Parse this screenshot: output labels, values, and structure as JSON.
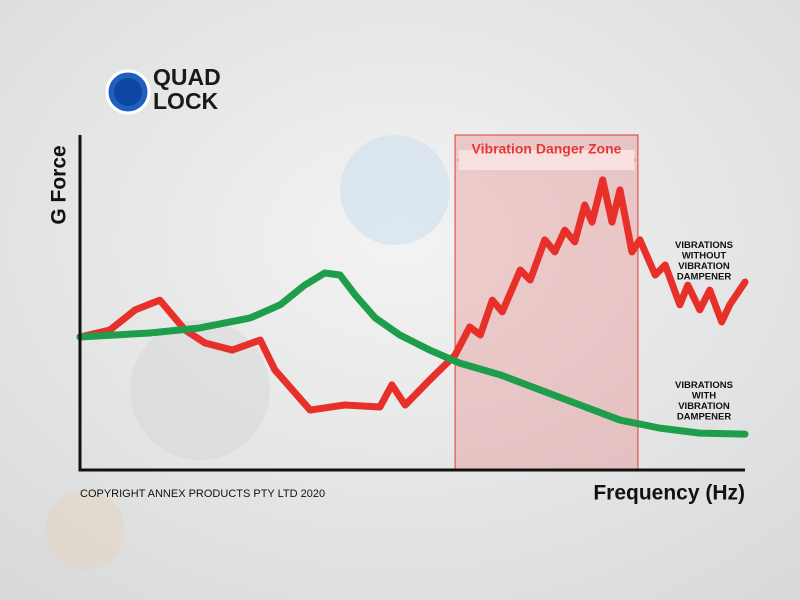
{
  "logo": {
    "lines": [
      "QUAD",
      "LOCK"
    ]
  },
  "copyright": "COPYRIGHT ANNEX PRODUCTS PTY LTD 2020",
  "chart_data": {
    "type": "line",
    "x_label": "Frequency (Hz)",
    "y_label": "G Force",
    "xlim": [
      0,
      100
    ],
    "ylim": [
      0,
      100
    ],
    "zone": {
      "label": "Vibration Danger Zone",
      "range": [
        56.4,
        83.9
      ],
      "color": "#e53935"
    },
    "series": [
      {
        "name": "VIBRATIONS WITHOUT VIBRATION DAMPENER",
        "color": "#e8302a",
        "x": [
          0,
          4.5,
          8.3,
          12.0,
          15.8,
          18.8,
          22.9,
          27.1,
          29.3,
          34.6,
          39.8,
          45.1,
          46.9,
          48.9,
          52.6,
          56.4,
          58.6,
          60.2,
          62.0,
          63.5,
          66.2,
          67.7,
          69.9,
          71.4,
          72.9,
          74.4,
          75.9,
          77.0,
          78.6,
          80.0,
          81.2,
          83.0,
          84.2,
          86.5,
          88.0,
          90.2,
          91.4,
          93.2,
          94.7,
          96.5,
          97.7,
          100
        ],
        "values": [
          39.7,
          41.8,
          47.8,
          50.7,
          41.8,
          37.9,
          35.8,
          38.8,
          29.9,
          17.9,
          19.4,
          18.8,
          25.4,
          19.4,
          26.9,
          34.3,
          42.7,
          40.3,
          50.7,
          47.2,
          59.7,
          56.7,
          68.7,
          65.1,
          71.6,
          68.1,
          79.1,
          74.0,
          86.6,
          74.0,
          83.6,
          65.1,
          68.7,
          58.2,
          61.2,
          49.3,
          55.2,
          47.8,
          53.7,
          44.2,
          49.3,
          56.1
        ]
      },
      {
        "name": "VIBRATIONS WITH VIBRATION DAMPENER",
        "color": "#1e9e4a",
        "x": [
          0,
          10.5,
          18.0,
          25.6,
          30.1,
          33.8,
          36.8,
          39.1,
          41.4,
          44.4,
          48.1,
          52.6,
          57.1,
          63.2,
          69.2,
          75.2,
          81.2,
          87.2,
          93.2,
          100
        ],
        "values": [
          39.7,
          40.9,
          42.4,
          45.4,
          49.3,
          55.2,
          58.8,
          58.2,
          52.2,
          45.4,
          40.3,
          35.8,
          31.9,
          28.4,
          23.9,
          19.4,
          14.9,
          12.5,
          11.0,
          10.7
        ]
      }
    ]
  }
}
